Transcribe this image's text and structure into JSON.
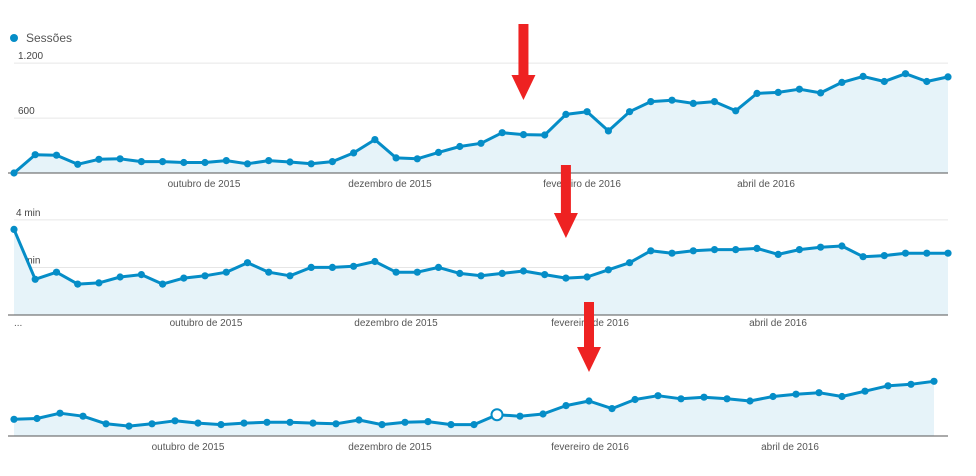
{
  "legend": {
    "label": "Sessões",
    "color": "#058dc7"
  },
  "colors": {
    "line": "#058dc7",
    "fill": "#e6f3f9",
    "grid": "#e6e6e6",
    "axis": "#555555",
    "arrow": "#ee2222"
  },
  "chart_data": [
    {
      "type": "area",
      "title": "",
      "legend": "Sessões",
      "ylim": [
        0,
        1300
      ],
      "yticks": [
        {
          "value": 1200,
          "label": "1.200"
        },
        {
          "value": 600,
          "label": "600"
        }
      ],
      "xticks": [
        "outubro de 2015",
        "dezembro de 2015",
        "fevereiro de 2016",
        "abril de 2016"
      ],
      "xtick_index": [
        7,
        16,
        25,
        34
      ],
      "annotations": [
        {
          "type": "arrow",
          "index": 24
        }
      ],
      "series": [
        {
          "values": [
            0,
            200,
            195,
            95,
            150,
            155,
            125,
            125,
            115,
            115,
            135,
            100,
            135,
            120,
            100,
            125,
            220,
            365,
            165,
            155,
            225,
            290,
            325,
            440,
            420,
            415,
            640,
            670,
            460,
            670,
            780,
            795,
            760,
            780,
            680,
            870,
            880,
            915,
            875,
            990,
            1055,
            1000,
            1085,
            1000,
            1050
          ]
        }
      ]
    },
    {
      "type": "area",
      "title": "",
      "ylim": [
        0,
        4.5
      ],
      "yticks": [
        {
          "value": 4,
          "label": "4 min"
        },
        {
          "value": 2,
          "label": "2 min"
        }
      ],
      "xticks": [
        "outubro de 2015",
        "dezembro de 2015",
        "fevereiro de 2016",
        "abril de 2016"
      ],
      "xtick_index": [
        7,
        16,
        25,
        34
      ],
      "first_tick_label": "...",
      "annotations": [
        {
          "type": "arrow",
          "index": 26
        }
      ],
      "series": [
        {
          "values": [
            3.6,
            1.5,
            1.8,
            1.3,
            1.35,
            1.6,
            1.7,
            1.3,
            1.55,
            1.65,
            1.8,
            2.2,
            1.8,
            1.65,
            2.0,
            2.0,
            2.05,
            2.25,
            1.8,
            1.8,
            2.0,
            1.75,
            1.65,
            1.75,
            1.85,
            1.7,
            1.55,
            1.6,
            1.9,
            2.2,
            2.7,
            2.6,
            2.7,
            2.75,
            2.75,
            2.8,
            2.55,
            2.75,
            2.85,
            2.9,
            2.45,
            2.5,
            2.6,
            2.6,
            2.6
          ]
        }
      ]
    },
    {
      "type": "area",
      "title": "",
      "ylim": [
        0,
        10
      ],
      "xticks": [
        "outubro de 2015",
        "dezembro de 2015",
        "fevereiro de 2016",
        "abril de 2016"
      ],
      "xtick_index": [
        7,
        16,
        25,
        34
      ],
      "annotations": [
        {
          "type": "arrow",
          "index": 25
        },
        {
          "type": "marker",
          "index": 21
        }
      ],
      "series": [
        {
          "values": [
            2.2,
            2.3,
            3.0,
            2.6,
            1.6,
            1.3,
            1.6,
            2.0,
            1.7,
            1.5,
            1.7,
            1.8,
            1.8,
            1.7,
            1.6,
            2.1,
            1.5,
            1.8,
            1.9,
            1.5,
            1.5,
            2.8,
            2.6,
            2.9,
            4.0,
            4.6,
            3.6,
            4.8,
            5.3,
            4.9,
            5.1,
            4.9,
            4.6,
            5.2,
            5.5,
            5.7,
            5.2,
            5.9,
            6.6,
            6.8,
            7.2
          ]
        }
      ]
    }
  ]
}
